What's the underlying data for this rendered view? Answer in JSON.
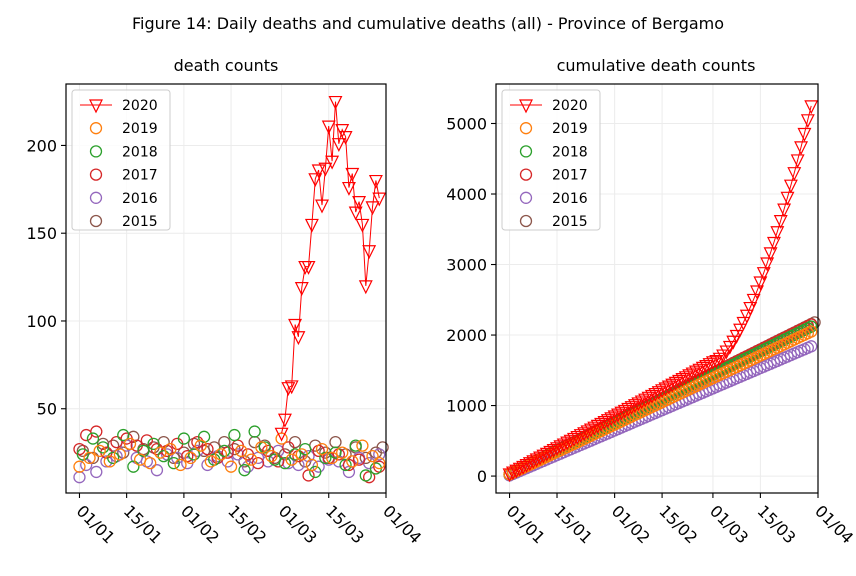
{
  "figure": {
    "title": "Figure 14: Daily deaths and cumulative deaths (all) - Province of Bergamo"
  },
  "colors": {
    "2020": "#ff0000",
    "2019": "#ff7f0e",
    "2018": "#2ca02c",
    "2017": "#d62728",
    "2016": "#9467bd",
    "2015": "#8c564b"
  },
  "chart_data": [
    {
      "type": "scatter",
      "title": "death counts",
      "x_tick_labels": [
        "01/01",
        "15/01",
        "01/02",
        "15/02",
        "01/03",
        "15/03",
        "01/04"
      ],
      "x_tick_days": [
        0,
        14,
        31,
        45,
        60,
        74,
        91
      ],
      "xlim": [
        -4,
        91
      ],
      "ylim": [
        2,
        235
      ],
      "yticks": [
        50,
        100,
        150,
        200
      ],
      "grid": true,
      "legend": "top-left",
      "series": [
        {
          "name": "2020",
          "marker": "triangle-down",
          "line": true,
          "x": [
            60,
            61,
            62,
            63,
            64,
            65,
            66,
            67,
            68,
            69,
            70,
            71,
            72,
            73,
            74,
            75,
            76,
            77,
            78,
            79,
            80,
            81,
            82,
            83,
            84,
            85,
            86,
            87,
            88,
            89
          ],
          "values": [
            36,
            44,
            62,
            63,
            98,
            91,
            119,
            131,
            131,
            155,
            181,
            186,
            166,
            187,
            211,
            191,
            225,
            201,
            209,
            205,
            176,
            184,
            162,
            168,
            155,
            120,
            140,
            165,
            180,
            170
          ]
        },
        {
          "name": "2019",
          "marker": "circle",
          "line": false,
          "x": [
            0,
            3,
            6,
            9,
            12,
            15,
            18,
            21,
            24,
            27,
            30,
            33,
            36,
            39,
            42,
            45,
            48,
            51,
            54,
            57,
            60,
            63,
            66,
            69,
            72,
            75,
            78,
            81,
            84,
            87,
            89
          ],
          "values": [
            17,
            22,
            26,
            20,
            24,
            30,
            21,
            19,
            25,
            27,
            18,
            22,
            29,
            20,
            24,
            17,
            26,
            21,
            28,
            23,
            33,
            21,
            24,
            18,
            27,
            22,
            25,
            20,
            29,
            23,
            19
          ]
        },
        {
          "name": "2018",
          "marker": "circle",
          "line": false,
          "x": [
            1,
            4,
            7,
            10,
            13,
            16,
            19,
            22,
            25,
            28,
            31,
            34,
            37,
            40,
            43,
            46,
            49,
            52,
            55,
            58,
            61,
            64,
            67,
            70,
            73,
            76,
            79,
            82,
            85,
            88
          ],
          "values": [
            24,
            33,
            28,
            22,
            35,
            17,
            26,
            30,
            23,
            19,
            33,
            24,
            34,
            21,
            26,
            35,
            15,
            37,
            28,
            21,
            19,
            24,
            27,
            14,
            22,
            25,
            18,
            29,
            12,
            16
          ]
        },
        {
          "name": "2017",
          "marker": "circle",
          "line": false,
          "x": [
            0,
            2,
            5,
            8,
            11,
            14,
            17,
            20,
            23,
            26,
            29,
            32,
            35,
            38,
            41,
            44,
            47,
            50,
            53,
            56,
            59,
            62,
            65,
            68,
            71,
            74,
            77,
            80,
            83,
            86,
            89
          ],
          "values": [
            27,
            35,
            37,
            25,
            31,
            33,
            29,
            32,
            27,
            26,
            30,
            23,
            31,
            27,
            22,
            25,
            29,
            24,
            19,
            26,
            20,
            28,
            23,
            12,
            26,
            22,
            24,
            18,
            21,
            11,
            17
          ]
        },
        {
          "name": "2016",
          "marker": "circle",
          "line": false,
          "x": [
            0,
            2,
            5,
            8,
            11,
            14,
            17,
            20,
            23,
            26,
            29,
            32,
            35,
            38,
            41,
            44,
            47,
            50,
            53,
            56,
            59,
            62,
            65,
            68,
            71,
            74,
            77,
            80,
            83,
            86,
            89
          ],
          "values": [
            11,
            18,
            14,
            20,
            23,
            29,
            22,
            20,
            15,
            24,
            22,
            19,
            26,
            18,
            23,
            20,
            24,
            17,
            22,
            20,
            26,
            19,
            18,
            23,
            17,
            21,
            20,
            14,
            22,
            19,
            24
          ]
        },
        {
          "name": "2015",
          "marker": "circle",
          "line": false,
          "x": [
            1,
            4,
            7,
            10,
            13,
            16,
            19,
            22,
            25,
            28,
            31,
            34,
            37,
            40,
            43,
            46,
            49,
            52,
            55,
            58,
            61,
            64,
            67,
            70,
            73,
            76,
            79,
            82,
            85,
            88,
            90
          ],
          "values": [
            26,
            22,
            30,
            29,
            25,
            34,
            27,
            28,
            31,
            22,
            25,
            30,
            26,
            28,
            31,
            27,
            20,
            31,
            29,
            22,
            24,
            31,
            20,
            29,
            25,
            31,
            24,
            28,
            22,
            25,
            28
          ]
        }
      ]
    },
    {
      "type": "scatter",
      "title": "cumulative death counts",
      "x_tick_labels": [
        "01/01",
        "15/01",
        "01/02",
        "15/02",
        "01/03",
        "15/03",
        "01/04"
      ],
      "x_tick_days": [
        0,
        14,
        31,
        45,
        60,
        74,
        91
      ],
      "xlim": [
        -4,
        91
      ],
      "ylim": [
        -240,
        5560
      ],
      "yticks": [
        0,
        1000,
        2000,
        3000,
        4000,
        5000
      ],
      "grid": true,
      "legend": "top-left",
      "series": [
        {
          "name": "2020",
          "marker": "triangle-down",
          "line": true,
          "start_day": 0,
          "end_day": 89,
          "start_value": 30,
          "break_day": 60,
          "break_value": 1620,
          "end_value": 5250,
          "curve": "accelerating"
        },
        {
          "name": "2019",
          "marker": "circle",
          "line": false,
          "start_day": 0,
          "end_day": 89,
          "start_value": 25,
          "end_value": 2050
        },
        {
          "name": "2018",
          "marker": "circle",
          "line": false,
          "start_day": 0,
          "end_day": 89,
          "start_value": 25,
          "end_value": 2120
        },
        {
          "name": "2017",
          "marker": "circle",
          "line": false,
          "start_day": 0,
          "end_day": 89,
          "start_value": 30,
          "end_value": 2150
        },
        {
          "name": "2016",
          "marker": "circle",
          "line": false,
          "start_day": 0,
          "end_day": 89,
          "start_value": 10,
          "end_value": 1840
        },
        {
          "name": "2015",
          "marker": "circle",
          "line": false,
          "start_day": 0,
          "end_day": 90,
          "start_value": 25,
          "end_value": 2180
        }
      ]
    }
  ]
}
